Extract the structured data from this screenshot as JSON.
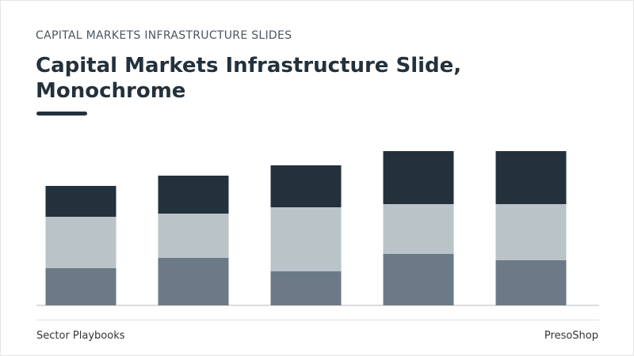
{
  "header": {
    "kicker": "CAPITAL MARKETS INFRASTRUCTURE SLIDES",
    "title": "Capital Markets Infrastructure Slide, Monochrome"
  },
  "chart_data": {
    "type": "bar",
    "stacked": true,
    "ylim": [
      0,
      200
    ],
    "series": [
      {
        "color": "#6b7a86",
        "values": [
          47,
          60,
          43,
          65,
          57
        ]
      },
      {
        "color": "#b9c3c8",
        "values": [
          65,
          56,
          81,
          63,
          71
        ]
      },
      {
        "color": "#23313c",
        "values": [
          39,
          48,
          53,
          67,
          67
        ]
      }
    ]
  },
  "footer": {
    "left": "Sector Playbooks",
    "right": "PresoShop"
  }
}
